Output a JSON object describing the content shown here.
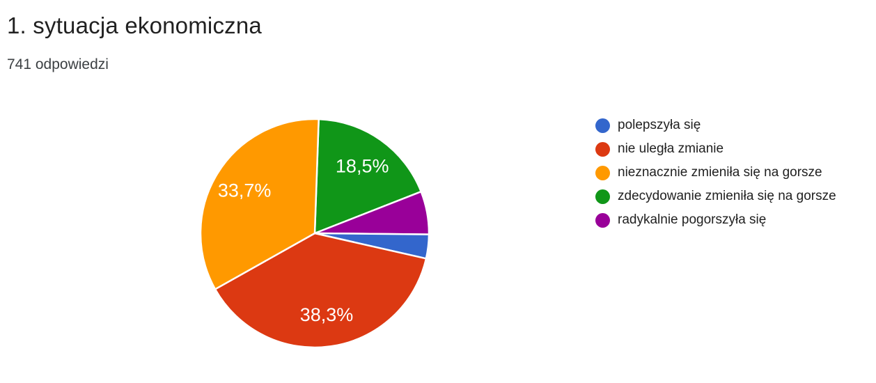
{
  "page": {
    "background": "#ffffff"
  },
  "chart_data": {
    "type": "pie",
    "title": "1. sytuacja ekonomiczna",
    "subtitle": "741 odpowiedzi",
    "total_responses": 741,
    "legend_position": "right",
    "slice_border_color": "#ffffff",
    "slices": [
      {
        "label": "polepszyła się",
        "pct": 3.4,
        "color": "#3366cc",
        "data_label": ""
      },
      {
        "label": "nie uległa zmianie",
        "pct": 38.3,
        "color": "#dc3912",
        "data_label": "38,3%"
      },
      {
        "label": "nieznacznie zmieniła się na gorsze",
        "pct": 33.7,
        "color": "#ff9900",
        "data_label": "33,7%"
      },
      {
        "label": "zdecydowanie zmieniła się na gorsze",
        "pct": 18.5,
        "color": "#109618",
        "data_label": "18,5%"
      },
      {
        "label": "radykalnie pogorszyła się",
        "pct": 6.1,
        "color": "#990099",
        "data_label": ""
      }
    ]
  }
}
